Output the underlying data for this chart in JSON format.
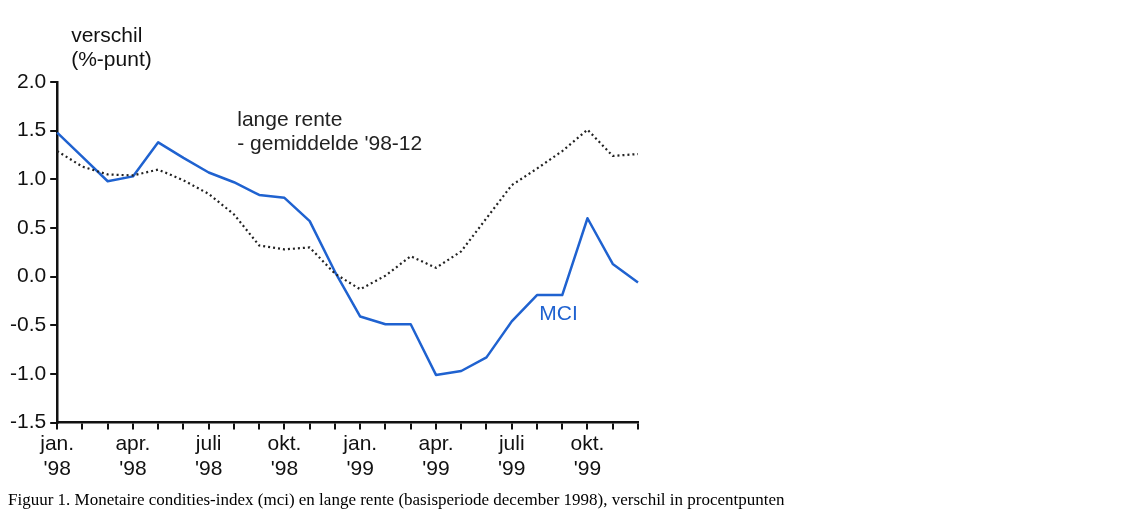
{
  "chart_data": {
    "type": "line",
    "ylabel": "verschil\n(%-punt)",
    "categories": [
      "jan.\n'98",
      null,
      null,
      "apr.\n'98",
      null,
      null,
      "juli\n'98",
      null,
      null,
      "okt.\n'98",
      null,
      null,
      "jan.\n'99",
      null,
      null,
      "apr.\n'99",
      null,
      null,
      "juli\n'99",
      null,
      null,
      "okt.\n'99",
      null,
      null
    ],
    "series": [
      {
        "name": "lange rente\n- gemiddelde '98-12",
        "color": "#222222",
        "line_style": "dotted",
        "values": [
          1.29,
          1.13,
          1.05,
          1.04,
          1.1,
          0.99,
          0.85,
          0.64,
          0.32,
          0.28,
          0.3,
          0.03,
          -0.13,
          0.01,
          0.21,
          0.09,
          0.26,
          0.6,
          0.94,
          1.11,
          1.29,
          1.51,
          1.24,
          1.26
        ]
      },
      {
        "name": "MCI",
        "color": "#1f62d0",
        "line_style": "solid",
        "values": [
          1.48,
          1.23,
          0.98,
          1.03,
          1.38,
          1.22,
          1.07,
          0.97,
          0.84,
          0.81,
          0.57,
          0.05,
          -0.41,
          -0.49,
          -0.49,
          -1.01,
          -0.97,
          -0.83,
          -0.46,
          -0.19,
          -0.19,
          0.6,
          0.13,
          -0.06
        ]
      }
    ],
    "ylim": [
      -1.5,
      2.0
    ],
    "yticks": [
      {
        "value": 2.0,
        "label": "2.0"
      },
      {
        "value": 1.5,
        "label": "1.5"
      },
      {
        "value": 1.0,
        "label": "1.0"
      },
      {
        "value": 0.5,
        "label": "0.5"
      },
      {
        "value": 0,
        "label": "0.0"
      },
      {
        "value": -0.5,
        "label": "-0.5"
      },
      {
        "value": -1.0,
        "label": "-1.0"
      },
      {
        "value": -1.5,
        "label": "-1.5"
      }
    ],
    "grid": false,
    "legend": false,
    "marker": "none",
    "annotations": [
      "Figuur 1. Monetaire condities-index (mci) en lange rente (basisperiode december 1998), verschil in procentpunten"
    ]
  }
}
